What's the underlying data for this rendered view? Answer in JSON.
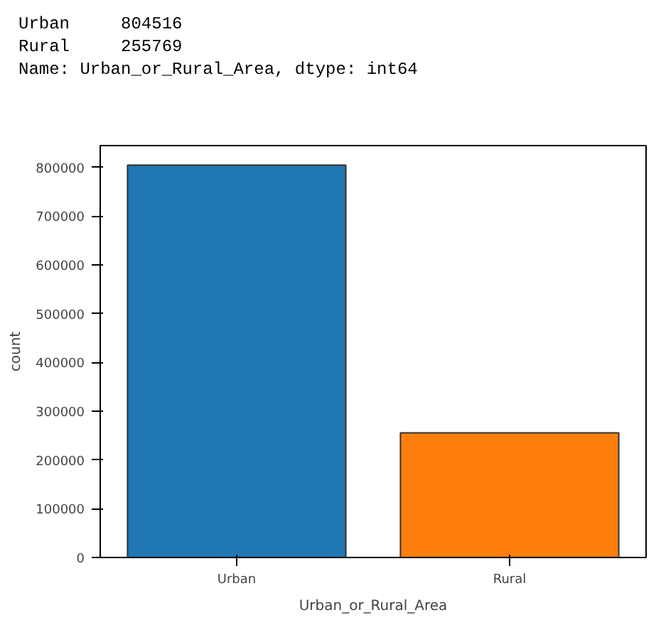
{
  "chart_data": {
    "type": "bar",
    "xlabel": "Urban_or_Rural_Area",
    "ylabel": "count",
    "categories": [
      "Urban",
      "Rural"
    ],
    "values": [
      804516,
      255769
    ],
    "colors": [
      "#1f77b4",
      "#ff7f0e"
    ],
    "ylim": [
      0,
      844742
    ],
    "yticks": [
      0,
      100000,
      200000,
      300000,
      400000,
      500000,
      600000,
      700000,
      800000
    ],
    "grid": false,
    "annotations": [
      "Urban     804516",
      "Rural     255769",
      "Name: Urban_or_Rural_Area, dtype: int64"
    ]
  }
}
